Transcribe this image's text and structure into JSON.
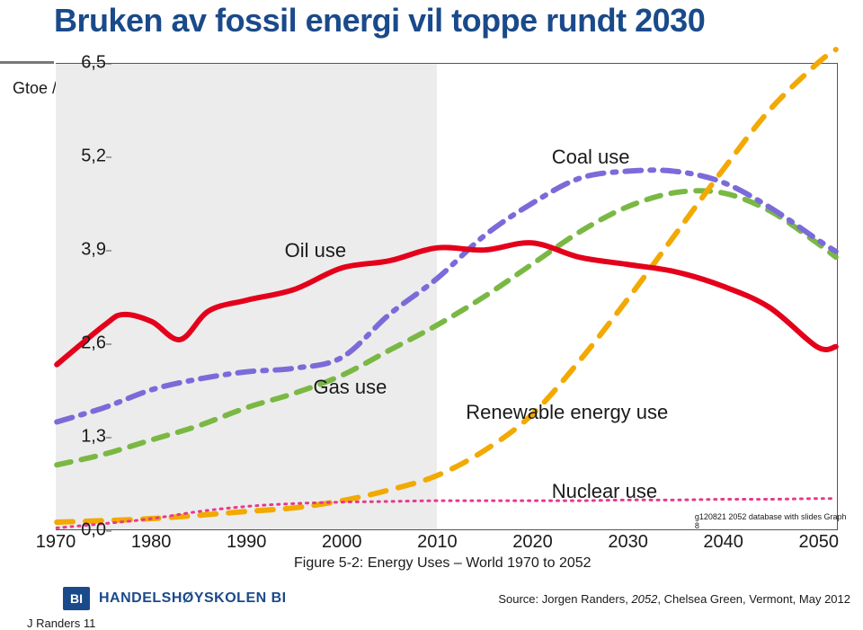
{
  "title": "Bruken av fossil energi vil toppe rundt  2030",
  "y_axis_label": "Gtoe / yr",
  "chart": {
    "type": "line",
    "x_range": [
      1970,
      2052
    ],
    "y_range": [
      0,
      6.5
    ],
    "shaded_until_x": 2010,
    "y_ticks": [
      {
        "v": 0.0,
        "label": "0,0"
      },
      {
        "v": 1.3,
        "label": "1,3"
      },
      {
        "v": 2.6,
        "label": "2,6"
      },
      {
        "v": 3.9,
        "label": "3,9"
      },
      {
        "v": 5.2,
        "label": "5,2"
      },
      {
        "v": 6.5,
        "label": "6,5"
      }
    ],
    "x_ticks": [
      1970,
      1980,
      1990,
      2000,
      2010,
      2020,
      2030,
      2040,
      2050
    ],
    "plot_background": "#ffffff",
    "shade_color": "#ececec",
    "axis_color": "#555555",
    "tick_fontsize": 20,
    "label_fontsize": 22,
    "series": {
      "oil": {
        "label": "Oil use",
        "color": "#e4001b",
        "stroke_width": 6,
        "dash": null,
        "label_pos_xy": [
          1994,
          3.9
        ],
        "points": [
          [
            1970,
            2.3
          ],
          [
            1975,
            2.85
          ],
          [
            1977,
            3.0
          ],
          [
            1980,
            2.9
          ],
          [
            1983,
            2.65
          ],
          [
            1986,
            3.05
          ],
          [
            1990,
            3.2
          ],
          [
            1995,
            3.35
          ],
          [
            2000,
            3.65
          ],
          [
            2005,
            3.75
          ],
          [
            2010,
            3.93
          ],
          [
            2015,
            3.9
          ],
          [
            2020,
            4.0
          ],
          [
            2025,
            3.8
          ],
          [
            2030,
            3.7
          ],
          [
            2035,
            3.6
          ],
          [
            2040,
            3.4
          ],
          [
            2045,
            3.1
          ],
          [
            2050,
            2.55
          ],
          [
            2052,
            2.55
          ]
        ]
      },
      "coal": {
        "label": "Coal use",
        "color": "#7a6bd9",
        "stroke_width": 6,
        "dash": "18 10 4 10",
        "label_pos_xy": [
          2022,
          5.2
        ],
        "points": [
          [
            1970,
            1.5
          ],
          [
            1975,
            1.7
          ],
          [
            1980,
            1.95
          ],
          [
            1985,
            2.1
          ],
          [
            1990,
            2.2
          ],
          [
            1995,
            2.25
          ],
          [
            2000,
            2.4
          ],
          [
            2005,
            3.0
          ],
          [
            2010,
            3.5
          ],
          [
            2015,
            4.1
          ],
          [
            2020,
            4.55
          ],
          [
            2025,
            4.9
          ],
          [
            2030,
            5.0
          ],
          [
            2035,
            5.0
          ],
          [
            2040,
            4.85
          ],
          [
            2045,
            4.5
          ],
          [
            2050,
            4.05
          ],
          [
            2052,
            3.88
          ]
        ]
      },
      "gas": {
        "label": "Gas use",
        "color": "#7ab844",
        "stroke_width": 6,
        "dash": "16 12",
        "label_pos_xy": [
          1997,
          2.0
        ],
        "points": [
          [
            1970,
            0.9
          ],
          [
            1975,
            1.05
          ],
          [
            1980,
            1.25
          ],
          [
            1985,
            1.45
          ],
          [
            1990,
            1.7
          ],
          [
            1995,
            1.9
          ],
          [
            2000,
            2.15
          ],
          [
            2005,
            2.5
          ],
          [
            2010,
            2.85
          ],
          [
            2015,
            3.25
          ],
          [
            2020,
            3.7
          ],
          [
            2025,
            4.15
          ],
          [
            2030,
            4.5
          ],
          [
            2035,
            4.7
          ],
          [
            2040,
            4.7
          ],
          [
            2045,
            4.45
          ],
          [
            2050,
            4.0
          ],
          [
            2052,
            3.8
          ]
        ]
      },
      "renewable": {
        "label": "Renewable energy use",
        "color": "#f2a900",
        "stroke_width": 6,
        "dash": "18 14",
        "label_pos_xy": [
          2013,
          1.65
        ],
        "points": [
          [
            1970,
            0.1
          ],
          [
            1980,
            0.15
          ],
          [
            1990,
            0.25
          ],
          [
            1995,
            0.3
          ],
          [
            2000,
            0.4
          ],
          [
            2005,
            0.55
          ],
          [
            2010,
            0.75
          ],
          [
            2015,
            1.1
          ],
          [
            2020,
            1.6
          ],
          [
            2025,
            2.35
          ],
          [
            2030,
            3.2
          ],
          [
            2035,
            4.1
          ],
          [
            2040,
            5.0
          ],
          [
            2045,
            5.85
          ],
          [
            2050,
            6.5
          ],
          [
            2052,
            6.7
          ]
        ]
      },
      "nuclear": {
        "label": "Nuclear use",
        "color": "#e6398b",
        "stroke_width": 3,
        "dash": "2 6",
        "label_pos_xy": [
          2022,
          0.55
        ],
        "points": [
          [
            1970,
            0.02
          ],
          [
            1975,
            0.08
          ],
          [
            1980,
            0.15
          ],
          [
            1985,
            0.25
          ],
          [
            1990,
            0.32
          ],
          [
            1995,
            0.36
          ],
          [
            2000,
            0.38
          ],
          [
            2005,
            0.39
          ],
          [
            2010,
            0.4
          ],
          [
            2015,
            0.4
          ],
          [
            2020,
            0.4
          ],
          [
            2025,
            0.4
          ],
          [
            2030,
            0.41
          ],
          [
            2035,
            0.41
          ],
          [
            2040,
            0.42
          ],
          [
            2045,
            0.42
          ],
          [
            2050,
            0.43
          ],
          [
            2052,
            0.43
          ]
        ]
      }
    },
    "small_note": "g120821 2052 database with slides Graph 8",
    "small_note_pos_xy": [
      2037,
      0.25
    ],
    "caption": "Figure 5-2:  Energy Uses – World 1970 to 2052"
  },
  "footer": {
    "logo_text": "BI",
    "org": "HANDELSHØYSKOLEN BI",
    "source_prefix": "Source: Jorgen Randers, ",
    "source_em": "2052",
    "source_suffix": ", Chelsea Green, Vermont, May 2012"
  },
  "page_note": "J Randers 11"
}
